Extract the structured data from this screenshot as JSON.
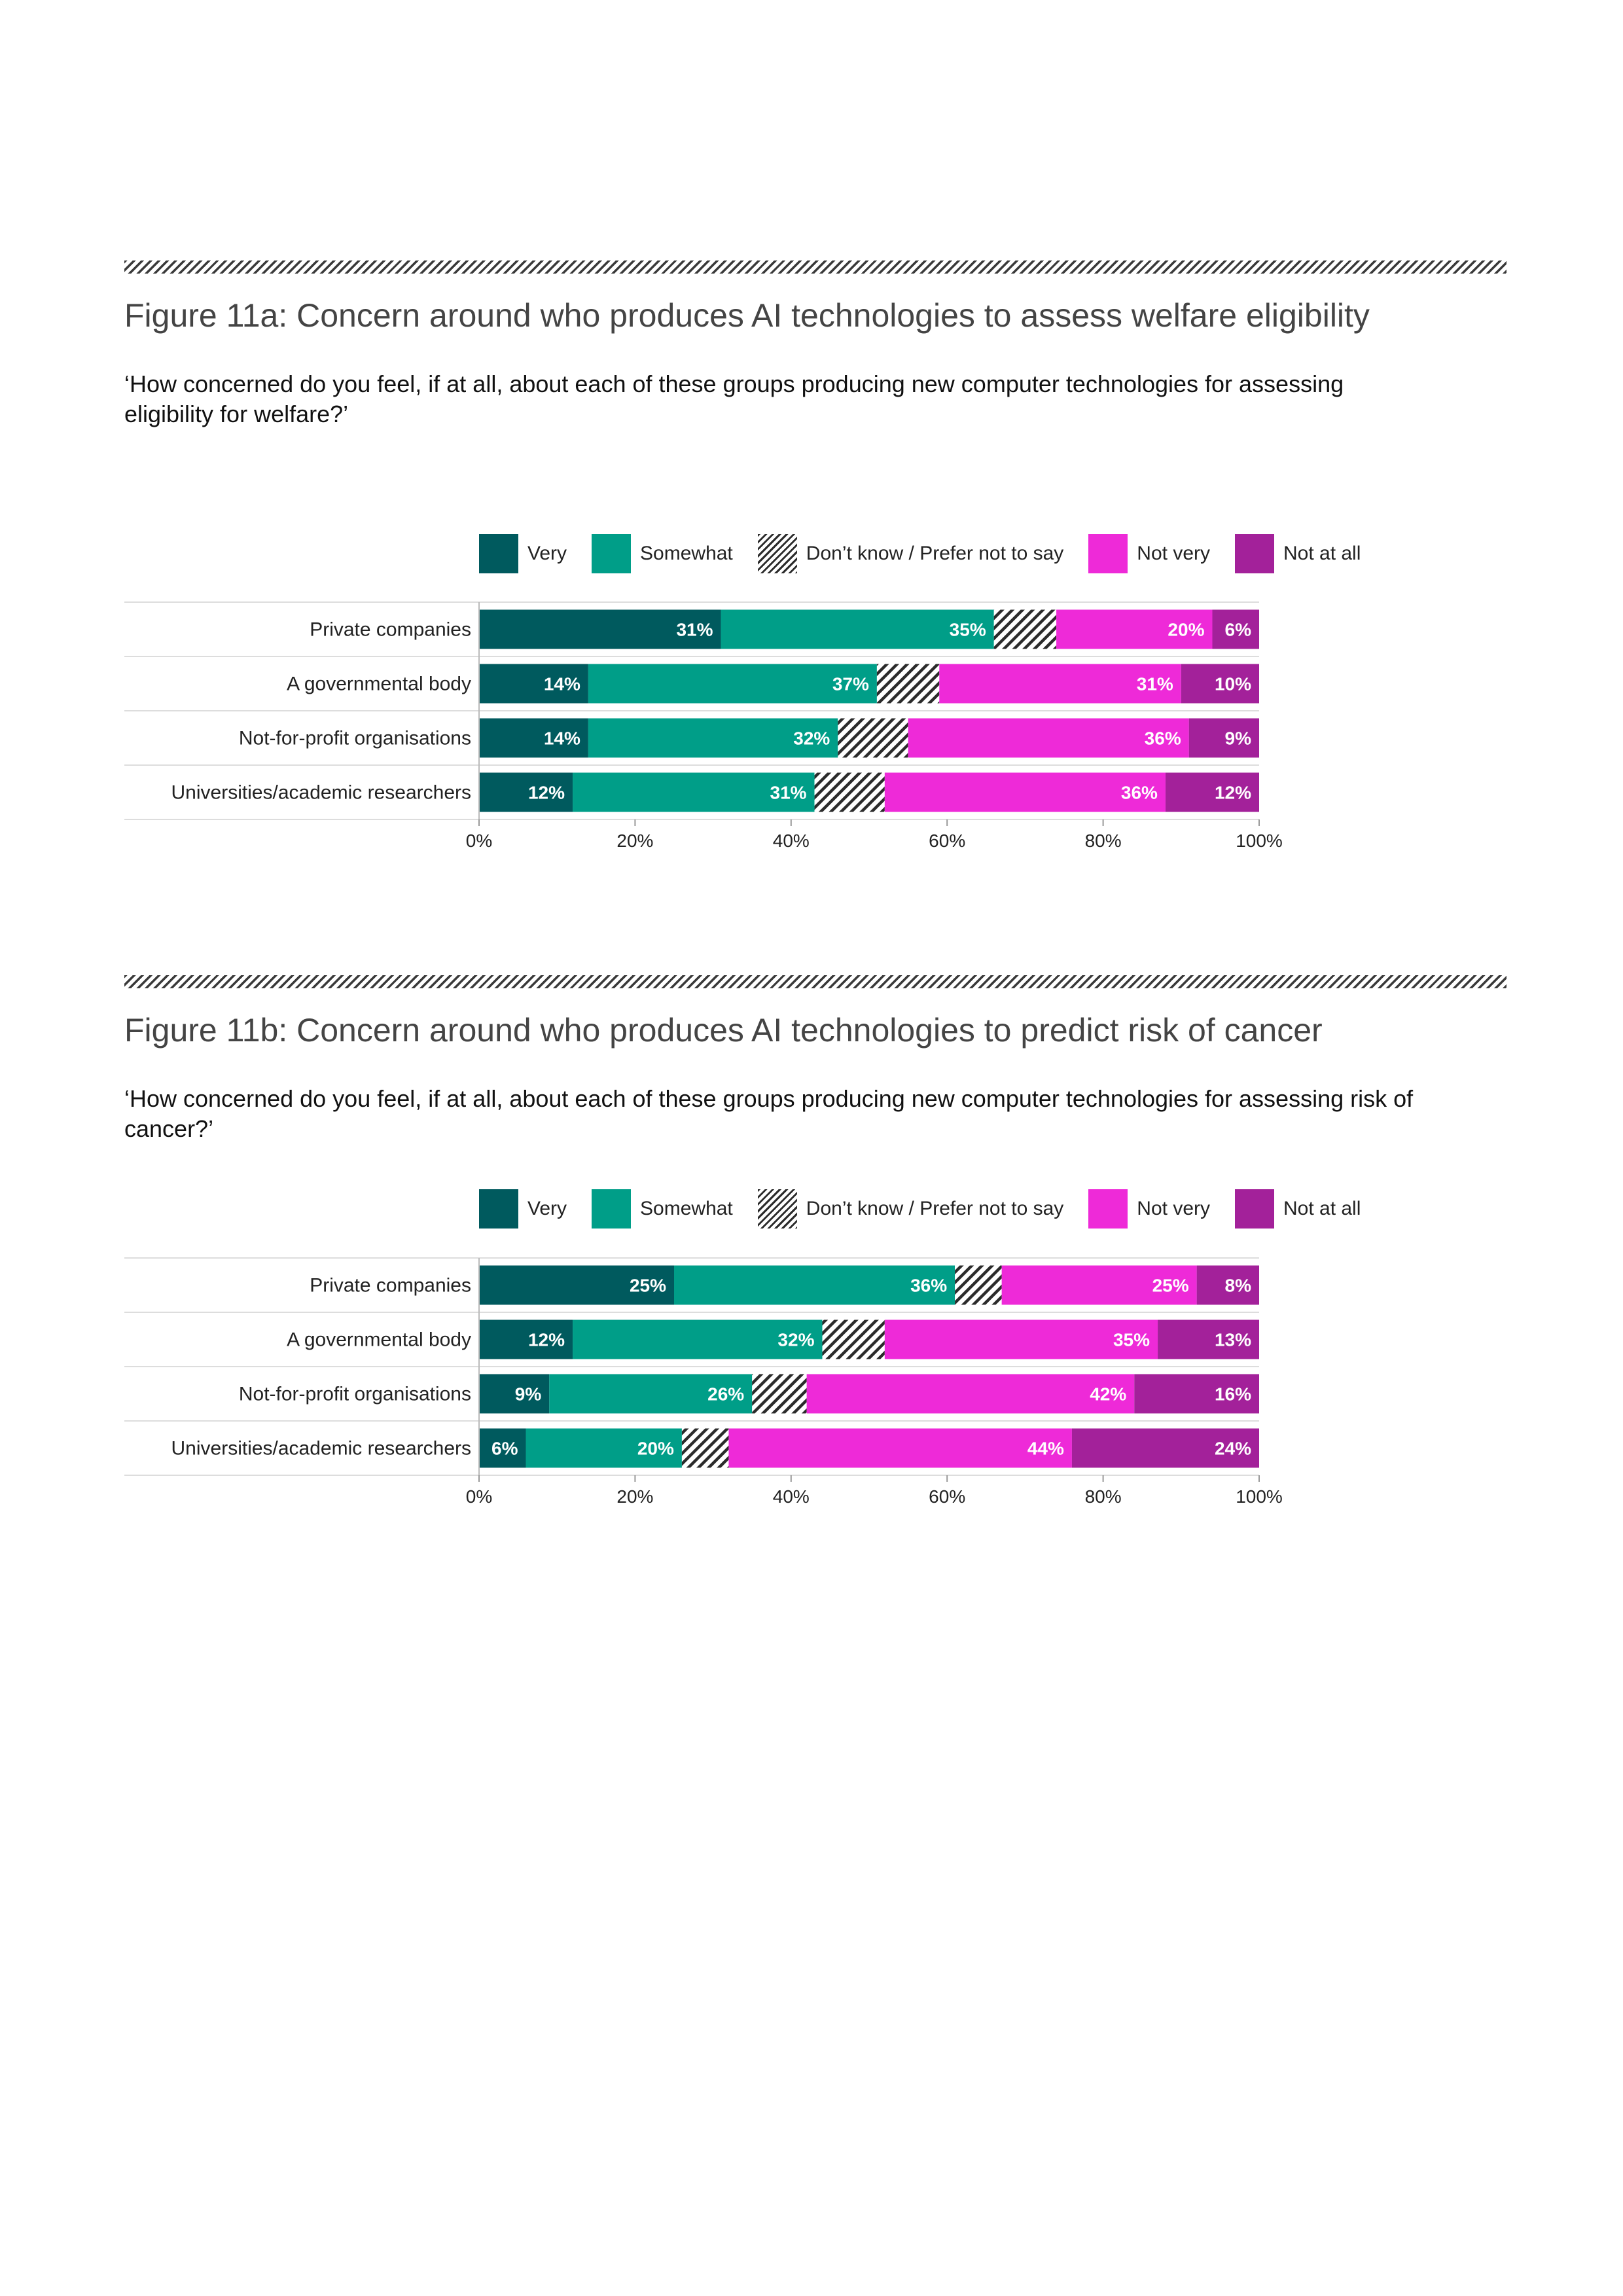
{
  "colors": {
    "very": "#005a5e",
    "somewhat": "#009e88",
    "dont_know": "hatch",
    "not_very": "#ee2ad8",
    "not_at_all": "#a3219a"
  },
  "legend": [
    {
      "key": "very",
      "label": "Very"
    },
    {
      "key": "somewhat",
      "label": "Somewhat"
    },
    {
      "key": "dont_know",
      "label": "Don’t know / Prefer not to say"
    },
    {
      "key": "not_very",
      "label": "Not very"
    },
    {
      "key": "not_at_all",
      "label": "Not at all"
    }
  ],
  "figures": [
    {
      "title": "Figure 11a: Concern around who produces AI technologies to assess welfare eligibility",
      "question": "‘How concerned do you feel, if at all, about each of these groups producing new computer technologies for assessing eligibility for welfare?’"
    },
    {
      "title": "Figure 11b: Concern around who produces AI technologies to predict risk of cancer",
      "question": "‘How concerned do you feel, if at all, about each of these groups producing new computer technologies for assessing risk of cancer?’"
    }
  ],
  "chart_data": [
    {
      "type": "bar",
      "orientation": "horizontal",
      "stacked": true,
      "categories": [
        "Private companies",
        "A governmental body",
        "Not-for-profit organisations",
        "Universities/academic researchers"
      ],
      "series": [
        {
          "name": "Very",
          "values": [
            31,
            14,
            14,
            12
          ]
        },
        {
          "name": "Somewhat",
          "values": [
            35,
            37,
            32,
            31
          ]
        },
        {
          "name": "Don’t know / Prefer not to say",
          "values": [
            8,
            8,
            9,
            9
          ]
        },
        {
          "name": "Not very",
          "values": [
            20,
            31,
            36,
            36
          ]
        },
        {
          "name": "Not at all",
          "values": [
            6,
            10,
            9,
            12
          ]
        }
      ],
      "xlim": [
        0,
        100
      ],
      "ticks": [
        "0%",
        "20%",
        "40%",
        "60%",
        "80%",
        "100%"
      ],
      "legend_position": "top",
      "grid": false
    },
    {
      "type": "bar",
      "orientation": "horizontal",
      "stacked": true,
      "categories": [
        "Private companies",
        "A governmental body",
        "Not-for-profit organisations",
        "Universities/academic researchers"
      ],
      "series": [
        {
          "name": "Very",
          "values": [
            25,
            12,
            9,
            6
          ]
        },
        {
          "name": "Somewhat",
          "values": [
            36,
            32,
            26,
            20
          ]
        },
        {
          "name": "Don’t know / Prefer not to say",
          "values": [
            6,
            8,
            7,
            6
          ]
        },
        {
          "name": "Not very",
          "values": [
            25,
            35,
            42,
            44
          ]
        },
        {
          "name": "Not at all",
          "values": [
            8,
            13,
            16,
            24
          ]
        }
      ],
      "xlim": [
        0,
        100
      ],
      "ticks": [
        "0%",
        "20%",
        "40%",
        "60%",
        "80%",
        "100%"
      ],
      "legend_position": "top",
      "grid": false
    }
  ]
}
